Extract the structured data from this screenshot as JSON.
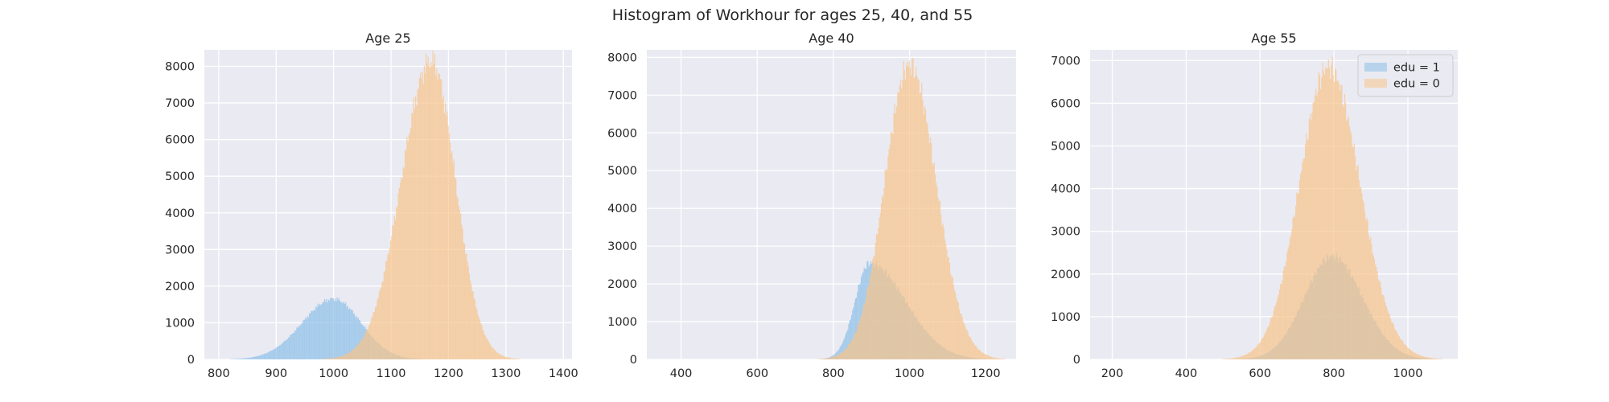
{
  "figure": {
    "title": "Histogram of Workhour for ages 25, 40, and 55"
  },
  "colors": {
    "background": "#eaeaf2",
    "grid": "#ffffff",
    "edu1": "#8dc0e8",
    "edu0": "#f7c48b"
  },
  "legend": {
    "placement": "upper-right",
    "entries": [
      "edu = 1",
      "edu = 0"
    ]
  },
  "chart_data": [
    {
      "type": "bar",
      "title": "Age 25",
      "xlabel": "",
      "ylabel": "",
      "xlim": [
        775,
        1415
      ],
      "ylim": [
        0,
        8450
      ],
      "xticks": [
        800,
        900,
        1000,
        1100,
        1200,
        1300,
        1400
      ],
      "yticks": [
        0,
        1000,
        2000,
        3000,
        4000,
        5000,
        6000,
        7000,
        8000
      ],
      "grid": true,
      "legend": false,
      "series": [
        {
          "name": "edu = 1",
          "peak_x": 1000,
          "peak_y": 1650,
          "sd_left": 55,
          "sd_right": 48,
          "range": [
            820,
            1160
          ]
        },
        {
          "name": "edu = 0",
          "peak_x": 1170,
          "peak_y": 8150,
          "sd_left": 52,
          "sd_right": 42,
          "range": [
            960,
            1330
          ]
        }
      ]
    },
    {
      "type": "bar",
      "title": "Age 40",
      "xlabel": "",
      "ylabel": "",
      "xlim": [
        310,
        1280
      ],
      "ylim": [
        0,
        8200
      ],
      "xticks": [
        400,
        600,
        800,
        1000,
        1200
      ],
      "yticks": [
        0,
        1000,
        2000,
        3000,
        4000,
        5000,
        6000,
        7000,
        8000
      ],
      "grid": true,
      "legend": false,
      "series": [
        {
          "name": "edu = 1",
          "peak_x": 895,
          "peak_y": 2550,
          "sd_left": 38,
          "sd_right": 95,
          "range": [
            700,
            1200
          ]
        },
        {
          "name": "edu = 0",
          "peak_x": 1000,
          "peak_y": 7800,
          "sd_left": 65,
          "sd_right": 70,
          "range": [
            740,
            1250
          ]
        }
      ]
    },
    {
      "type": "bar",
      "title": "Age 55",
      "xlabel": "",
      "ylabel": "",
      "xlim": [
        140,
        1135
      ],
      "ylim": [
        0,
        7250
      ],
      "xticks": [
        200,
        400,
        600,
        800,
        1000
      ],
      "yticks": [
        0,
        1000,
        2000,
        3000,
        4000,
        5000,
        6000,
        7000
      ],
      "grid": true,
      "legend": true,
      "series": [
        {
          "name": "edu = 1",
          "peak_x": 795,
          "peak_y": 2420,
          "sd_left": 75,
          "sd_right": 82,
          "range": [
            520,
            1080
          ]
        },
        {
          "name": "edu = 0",
          "peak_x": 785,
          "peak_y": 6850,
          "sd_left": 78,
          "sd_right": 85,
          "range": [
            480,
            1100
          ]
        }
      ]
    }
  ]
}
